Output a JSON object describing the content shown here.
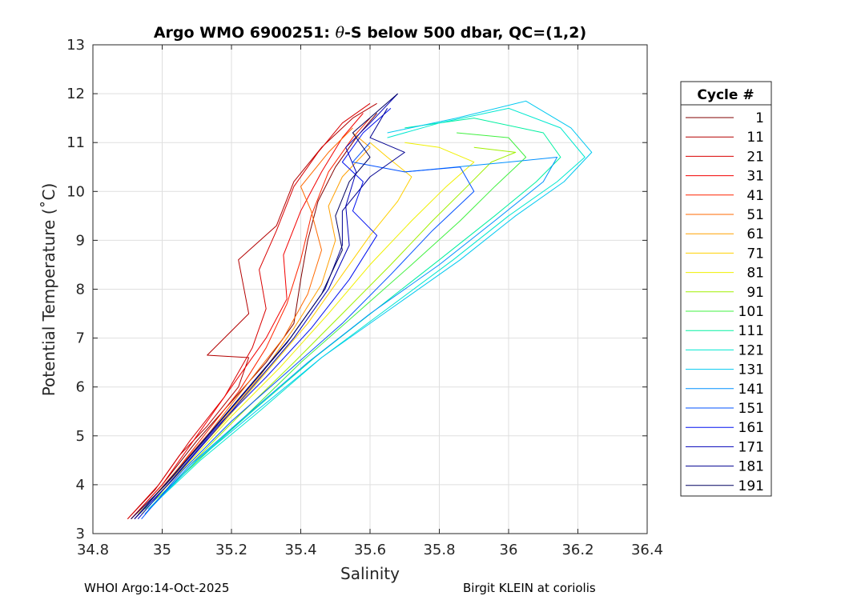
{
  "chart_data": {
    "type": "line",
    "title_parts": [
      "Argo WMO 6900251: ",
      "θ",
      "-S below 500 dbar,  QC=(1,2)"
    ],
    "xlabel": "Salinity",
    "ylabel": "Potential Temperature (˚C)",
    "xlim": [
      34.8,
      36.4
    ],
    "ylim": [
      3,
      13
    ],
    "xticks": [
      34.8,
      35,
      35.2,
      35.4,
      35.6,
      35.8,
      36,
      36.2,
      36.4
    ],
    "xtick_labels": [
      "34.8",
      "35",
      "35.2",
      "35.4",
      "35.6",
      "35.8",
      "36",
      "36.2",
      "36.4"
    ],
    "yticks": [
      3,
      4,
      5,
      6,
      7,
      8,
      9,
      10,
      11,
      12,
      13
    ],
    "ytick_labels": [
      "3",
      "4",
      "5",
      "6",
      "7",
      "8",
      "9",
      "10",
      "11",
      "12",
      "13"
    ],
    "grid": true,
    "legend_title": "Cycle #",
    "legend_placement": "right, outside",
    "series": [
      {
        "name": "1",
        "color": "#800000",
        "points": [
          [
            34.91,
            3.3
          ],
          [
            35.0,
            4.0
          ],
          [
            35.1,
            4.9
          ],
          [
            35.2,
            5.7
          ],
          [
            35.3,
            6.5
          ],
          [
            35.38,
            7.3
          ],
          [
            35.4,
            8.2
          ],
          [
            35.42,
            9.0
          ],
          [
            35.45,
            9.8
          ],
          [
            35.5,
            10.5
          ],
          [
            35.56,
            11.1
          ],
          [
            35.62,
            11.6
          ]
        ]
      },
      {
        "name": "11",
        "color": "#b30000",
        "points": [
          [
            34.9,
            3.3
          ],
          [
            34.98,
            3.9
          ],
          [
            35.05,
            4.6
          ],
          [
            35.13,
            5.2
          ],
          [
            35.22,
            6.0
          ],
          [
            35.25,
            6.6
          ],
          [
            35.13,
            6.65
          ],
          [
            35.25,
            7.5
          ],
          [
            35.22,
            8.6
          ],
          [
            35.33,
            9.3
          ],
          [
            35.38,
            10.2
          ],
          [
            35.46,
            10.9
          ],
          [
            35.55,
            11.5
          ],
          [
            35.62,
            11.8
          ]
        ]
      },
      {
        "name": "21",
        "color": "#d90000",
        "points": [
          [
            34.9,
            3.3
          ],
          [
            34.99,
            4.0
          ],
          [
            35.08,
            4.9
          ],
          [
            35.18,
            5.8
          ],
          [
            35.26,
            6.8
          ],
          [
            35.3,
            7.6
          ],
          [
            35.28,
            8.4
          ],
          [
            35.33,
            9.2
          ],
          [
            35.38,
            10.1
          ],
          [
            35.45,
            10.8
          ],
          [
            35.52,
            11.4
          ],
          [
            35.6,
            11.8
          ]
        ]
      },
      {
        "name": "31",
        "color": "#f20000",
        "points": [
          [
            34.91,
            3.3
          ],
          [
            35.0,
            4.0
          ],
          [
            35.1,
            5.0
          ],
          [
            35.2,
            6.0
          ],
          [
            35.3,
            7.0
          ],
          [
            35.36,
            7.8
          ],
          [
            35.35,
            8.7
          ],
          [
            35.4,
            9.6
          ],
          [
            35.46,
            10.4
          ],
          [
            35.52,
            11.1
          ],
          [
            35.58,
            11.6
          ]
        ]
      },
      {
        "name": "41",
        "color": "#ff2400",
        "points": [
          [
            34.92,
            3.3
          ],
          [
            35.02,
            4.1
          ],
          [
            35.12,
            5.0
          ],
          [
            35.22,
            5.9
          ],
          [
            35.3,
            6.8
          ],
          [
            35.36,
            7.7
          ],
          [
            35.4,
            8.6
          ],
          [
            35.43,
            9.5
          ],
          [
            35.48,
            10.4
          ],
          [
            35.55,
            11.1
          ],
          [
            35.6,
            11.5
          ]
        ]
      },
      {
        "name": "51",
        "color": "#ff6a00",
        "points": [
          [
            34.92,
            3.3
          ],
          [
            35.03,
            4.2
          ],
          [
            35.14,
            5.1
          ],
          [
            35.25,
            6.1
          ],
          [
            35.35,
            7.0
          ],
          [
            35.42,
            7.9
          ],
          [
            35.46,
            8.8
          ],
          [
            35.43,
            9.6
          ],
          [
            35.4,
            10.1
          ],
          [
            35.48,
            10.8
          ],
          [
            35.55,
            11.3
          ]
        ]
      },
      {
        "name": "61",
        "color": "#ffa000",
        "points": [
          [
            34.93,
            3.3
          ],
          [
            35.04,
            4.2
          ],
          [
            35.16,
            5.2
          ],
          [
            35.28,
            6.2
          ],
          [
            35.38,
            7.2
          ],
          [
            35.46,
            8.1
          ],
          [
            35.5,
            9.0
          ],
          [
            35.48,
            9.7
          ],
          [
            35.52,
            10.3
          ],
          [
            35.6,
            10.9
          ],
          [
            35.55,
            11.2
          ]
        ]
      },
      {
        "name": "71",
        "color": "#ffd000",
        "points": [
          [
            34.93,
            3.4
          ],
          [
            35.05,
            4.3
          ],
          [
            35.18,
            5.3
          ],
          [
            35.3,
            6.3
          ],
          [
            35.42,
            7.3
          ],
          [
            35.52,
            8.3
          ],
          [
            35.6,
            9.1
          ],
          [
            35.68,
            9.8
          ],
          [
            35.72,
            10.3
          ],
          [
            35.65,
            10.7
          ],
          [
            35.6,
            11.0
          ]
        ]
      },
      {
        "name": "81",
        "color": "#f0f000",
        "points": [
          [
            34.94,
            3.4
          ],
          [
            35.07,
            4.4
          ],
          [
            35.2,
            5.4
          ],
          [
            35.34,
            6.4
          ],
          [
            35.48,
            7.5
          ],
          [
            35.6,
            8.5
          ],
          [
            35.72,
            9.4
          ],
          [
            35.82,
            10.1
          ],
          [
            35.9,
            10.6
          ],
          [
            35.8,
            10.9
          ],
          [
            35.7,
            11.0
          ]
        ]
      },
      {
        "name": "91",
        "color": "#a0f000",
        "points": [
          [
            34.95,
            3.4
          ],
          [
            35.08,
            4.4
          ],
          [
            35.22,
            5.4
          ],
          [
            35.38,
            6.5
          ],
          [
            35.52,
            7.5
          ],
          [
            35.66,
            8.5
          ],
          [
            35.78,
            9.4
          ],
          [
            35.88,
            10.1
          ],
          [
            35.95,
            10.6
          ],
          [
            36.02,
            10.8
          ],
          [
            35.9,
            10.9
          ]
        ]
      },
      {
        "name": "101",
        "color": "#40f040",
        "points": [
          [
            34.95,
            3.5
          ],
          [
            35.09,
            4.4
          ],
          [
            35.24,
            5.4
          ],
          [
            35.4,
            6.5
          ],
          [
            35.56,
            7.5
          ],
          [
            35.72,
            8.5
          ],
          [
            35.86,
            9.4
          ],
          [
            35.96,
            10.1
          ],
          [
            36.05,
            10.7
          ],
          [
            36.0,
            11.1
          ],
          [
            35.85,
            11.2
          ]
        ]
      },
      {
        "name": "111",
        "color": "#00f0a0",
        "points": [
          [
            34.96,
            3.5
          ],
          [
            35.1,
            4.5
          ],
          [
            35.26,
            5.5
          ],
          [
            35.44,
            6.6
          ],
          [
            35.62,
            7.6
          ],
          [
            35.8,
            8.6
          ],
          [
            35.96,
            9.5
          ],
          [
            36.08,
            10.2
          ],
          [
            36.15,
            10.7
          ],
          [
            36.1,
            11.2
          ],
          [
            35.9,
            11.5
          ],
          [
            35.7,
            11.3
          ]
        ]
      },
      {
        "name": "121",
        "color": "#00e8d0",
        "points": [
          [
            34.96,
            3.5
          ],
          [
            35.11,
            4.5
          ],
          [
            35.28,
            5.5
          ],
          [
            35.46,
            6.6
          ],
          [
            35.65,
            7.6
          ],
          [
            35.84,
            8.6
          ],
          [
            36.0,
            9.5
          ],
          [
            36.14,
            10.2
          ],
          [
            36.22,
            10.7
          ],
          [
            36.15,
            11.3
          ],
          [
            36.0,
            11.7
          ],
          [
            35.8,
            11.4
          ],
          [
            35.65,
            11.1
          ]
        ]
      },
      {
        "name": "131",
        "color": "#00c8f0",
        "points": [
          [
            34.95,
            3.4
          ],
          [
            35.1,
            4.5
          ],
          [
            35.27,
            5.5
          ],
          [
            35.46,
            6.6
          ],
          [
            35.66,
            7.6
          ],
          [
            35.86,
            8.6
          ],
          [
            36.02,
            9.5
          ],
          [
            36.16,
            10.2
          ],
          [
            36.24,
            10.8
          ],
          [
            36.18,
            11.3
          ],
          [
            36.05,
            11.85
          ],
          [
            35.85,
            11.5
          ],
          [
            35.65,
            11.2
          ]
        ]
      },
      {
        "name": "141",
        "color": "#0090ff",
        "points": [
          [
            34.95,
            3.4
          ],
          [
            35.08,
            4.4
          ],
          [
            35.24,
            5.4
          ],
          [
            35.42,
            6.5
          ],
          [
            35.6,
            7.5
          ],
          [
            35.8,
            8.5
          ],
          [
            35.96,
            9.4
          ],
          [
            36.1,
            10.2
          ],
          [
            36.14,
            10.7
          ],
          [
            36.0,
            10.6
          ],
          [
            35.85,
            10.5
          ],
          [
            35.7,
            10.4
          ]
        ]
      },
      {
        "name": "151",
        "color": "#0050ff",
        "points": [
          [
            34.94,
            3.3
          ],
          [
            35.06,
            4.3
          ],
          [
            35.2,
            5.3
          ],
          [
            35.36,
            6.3
          ],
          [
            35.52,
            7.3
          ],
          [
            35.66,
            8.3
          ],
          [
            35.78,
            9.2
          ],
          [
            35.9,
            10.0
          ],
          [
            35.86,
            10.5
          ],
          [
            35.7,
            10.4
          ],
          [
            35.55,
            10.6
          ],
          [
            35.6,
            11.0
          ]
        ]
      },
      {
        "name": "161",
        "color": "#0010f0",
        "points": [
          [
            34.93,
            3.3
          ],
          [
            35.04,
            4.2
          ],
          [
            35.16,
            5.2
          ],
          [
            35.3,
            6.2
          ],
          [
            35.43,
            7.2
          ],
          [
            35.54,
            8.2
          ],
          [
            35.62,
            9.1
          ],
          [
            35.55,
            9.6
          ],
          [
            35.58,
            10.2
          ],
          [
            35.52,
            10.6
          ],
          [
            35.58,
            11.2
          ],
          [
            35.66,
            11.7
          ]
        ]
      },
      {
        "name": "171",
        "color": "#0000b8",
        "points": [
          [
            34.92,
            3.3
          ],
          [
            35.03,
            4.1
          ],
          [
            35.14,
            5.0
          ],
          [
            35.26,
            6.0
          ],
          [
            35.38,
            7.0
          ],
          [
            35.48,
            8.0
          ],
          [
            35.54,
            8.9
          ],
          [
            35.53,
            9.7
          ],
          [
            35.56,
            10.4
          ],
          [
            35.53,
            10.9
          ],
          [
            35.6,
            11.4
          ],
          [
            35.68,
            12.0
          ]
        ]
      },
      {
        "name": "181",
        "color": "#000090",
        "points": [
          [
            34.92,
            3.3
          ],
          [
            35.02,
            4.1
          ],
          [
            35.13,
            5.0
          ],
          [
            35.25,
            6.0
          ],
          [
            35.37,
            7.0
          ],
          [
            35.47,
            8.0
          ],
          [
            35.52,
            8.9
          ],
          [
            35.52,
            9.6
          ],
          [
            35.6,
            10.3
          ],
          [
            35.7,
            10.8
          ],
          [
            35.6,
            11.1
          ],
          [
            35.65,
            11.7
          ]
        ]
      },
      {
        "name": "191",
        "color": "#000060",
        "points": [
          [
            34.91,
            3.3
          ],
          [
            35.01,
            4.0
          ],
          [
            35.12,
            4.9
          ],
          [
            35.24,
            5.9
          ],
          [
            35.36,
            6.9
          ],
          [
            35.46,
            7.9
          ],
          [
            35.52,
            8.8
          ],
          [
            35.5,
            9.5
          ],
          [
            35.54,
            10.2
          ],
          [
            35.6,
            10.7
          ],
          [
            35.55,
            11.2
          ],
          [
            35.68,
            12.0
          ]
        ]
      }
    ]
  },
  "footer": {
    "left": "WHOI Argo:14-Oct-2025",
    "right": "Birgit KLEIN at coriolis"
  }
}
